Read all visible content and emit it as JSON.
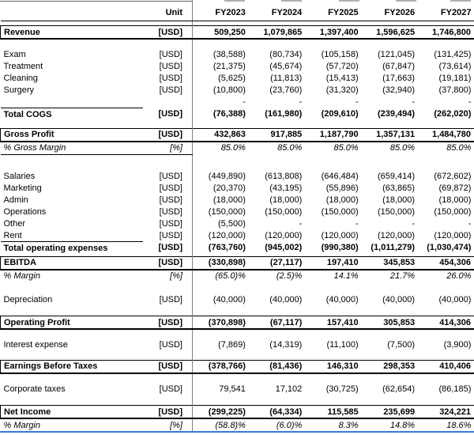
{
  "colors": {
    "accent_line": "#3c78d8",
    "grid_divider": "#808080",
    "border": "#000000"
  },
  "table": {
    "corner_header": "",
    "unit_header": "Unit",
    "columns": [
      "FY2023",
      "FY2024",
      "FY2025",
      "FY2026",
      "FY2027"
    ],
    "rows": [
      {
        "style": "spacer",
        "h": 6
      },
      {
        "style": "boxed",
        "label": "Revenue",
        "unit": "[USD]",
        "values": [
          "509,250",
          "1,079,865",
          "1,397,400",
          "1,596,625",
          "1,746,800"
        ]
      },
      {
        "style": "spacer",
        "h": 12
      },
      {
        "style": "normal",
        "label": "Exam",
        "unit": "[USD]",
        "values": [
          "(38,588)",
          "(80,734)",
          "(105,158)",
          "(121,045)",
          "(131,425)"
        ]
      },
      {
        "style": "normal",
        "label": "Treatment",
        "unit": "[USD]",
        "values": [
          "(21,375)",
          "(45,674)",
          "(57,720)",
          "(67,847)",
          "(73,614)"
        ]
      },
      {
        "style": "normal",
        "label": "Cleaning",
        "unit": "[USD]",
        "values": [
          "(5,625)",
          "(11,813)",
          "(15,413)",
          "(17,663)",
          "(19,181)"
        ]
      },
      {
        "style": "normal",
        "label": "Surgery",
        "unit": "[USD]",
        "values": [
          "(10,800)",
          "(23,760)",
          "(31,320)",
          "(32,940)",
          "(37,800)"
        ]
      },
      {
        "style": "normal",
        "label": "",
        "unit": "",
        "values": [
          "-",
          "-",
          "-",
          "-",
          "-"
        ]
      },
      {
        "style": "bold",
        "label": "Total COGS",
        "unit": "[USD]",
        "label_top_line": true,
        "values": [
          "(76,388)",
          "(161,980)",
          "(209,610)",
          "(239,494)",
          "(262,020)"
        ]
      },
      {
        "style": "spacer",
        "h": 10
      },
      {
        "style": "boxed",
        "label": "Gross Profit",
        "unit": "[USD]",
        "values": [
          "432,863",
          "917,885",
          "1,187,790",
          "1,357,131",
          "1,484,780"
        ]
      },
      {
        "style": "italic",
        "label": "% Gross Margin",
        "unit": "[%]",
        "left_underline": true,
        "values": [
          "85.0%",
          "85.0%",
          "85.0%",
          "85.0%",
          "85.0%"
        ]
      },
      {
        "style": "spacer",
        "h": 20
      },
      {
        "style": "normal",
        "label": "Salaries",
        "unit": "[USD]",
        "values": [
          "(449,890)",
          "(613,808)",
          "(646,484)",
          "(659,414)",
          "(672,602)"
        ]
      },
      {
        "style": "normal",
        "label": "Marketing",
        "unit": "[USD]",
        "values": [
          "(20,370)",
          "(43,195)",
          "(55,896)",
          "(63,865)",
          "(69,872)"
        ]
      },
      {
        "style": "normal",
        "label": "Admin",
        "unit": "[USD]",
        "values": [
          "(18,000)",
          "(18,000)",
          "(18,000)",
          "(18,000)",
          "(18,000)"
        ]
      },
      {
        "style": "normal",
        "label": "Operations",
        "unit": "[USD]",
        "values": [
          "(150,000)",
          "(150,000)",
          "(150,000)",
          "(150,000)",
          "(150,000)"
        ]
      },
      {
        "style": "normal",
        "label": "Other",
        "unit": "[USD]",
        "values": [
          "(5,500)",
          "-",
          "-",
          "-",
          "-"
        ]
      },
      {
        "style": "normal",
        "label": "Rent",
        "unit": "[USD]",
        "values": [
          "(120,000)",
          "(120,000)",
          "(120,000)",
          "(120,000)",
          "(120,000)"
        ]
      },
      {
        "style": "bold",
        "label": "Total operating expenses",
        "unit": "[USD]",
        "label_top_line": true,
        "values": [
          "(763,760)",
          "(945,002)",
          "(990,380)",
          "(1,011,279)",
          "(1,030,474)"
        ]
      },
      {
        "style": "spacer",
        "h": 3
      },
      {
        "style": "boxed",
        "label": "EBITDA",
        "unit": "[USD]",
        "values": [
          "(330,898)",
          "(27,117)",
          "197,410",
          "345,853",
          "454,306"
        ]
      },
      {
        "style": "italic",
        "label": "% Margin",
        "unit": "[%]",
        "values": [
          "(65.0)%",
          "(2.5)%",
          "14.1%",
          "21.7%",
          "26.0%"
        ]
      },
      {
        "style": "spacer",
        "h": 15
      },
      {
        "style": "normal",
        "label": "Depreciation",
        "unit": "[USD]",
        "values": [
          "(40,000)",
          "(40,000)",
          "(40,000)",
          "(40,000)",
          "(40,000)"
        ]
      },
      {
        "style": "spacer",
        "h": 13
      },
      {
        "style": "boxed",
        "label": "Operating Profit",
        "unit": "[USD]",
        "values": [
          "(370,898)",
          "(67,117)",
          "157,410",
          "305,853",
          "414,306"
        ]
      },
      {
        "style": "spacer",
        "h": 12
      },
      {
        "style": "normal",
        "label": "Interest expense",
        "unit": "[USD]",
        "values": [
          "(7,869)",
          "(14,319)",
          "(11,100)",
          "(7,500)",
          "(3,900)"
        ]
      },
      {
        "style": "spacer",
        "h": 12
      },
      {
        "style": "boxed",
        "label": "Earnings Before Taxes",
        "unit": "[USD]",
        "values": [
          "(378,766)",
          "(81,436)",
          "146,310",
          "298,353",
          "410,406"
        ]
      },
      {
        "style": "spacer",
        "h": 13
      },
      {
        "style": "normal",
        "label": "Corporate taxes",
        "unit": "[USD]",
        "values": [
          "79,541",
          "17,102",
          "(30,725)",
          "(62,654)",
          "(86,185)"
        ]
      },
      {
        "style": "spacer",
        "h": 13
      },
      {
        "style": "boxed",
        "label": "Net Income",
        "unit": "[USD]",
        "values": [
          "(299,225)",
          "(64,334)",
          "115,585",
          "235,699",
          "324,221"
        ]
      },
      {
        "style": "italic",
        "label": "% Margin",
        "unit": "[%]",
        "values": [
          "(58.8)%",
          "(6.0)%",
          "8.3%",
          "14.8%",
          "18.6%"
        ]
      }
    ]
  }
}
